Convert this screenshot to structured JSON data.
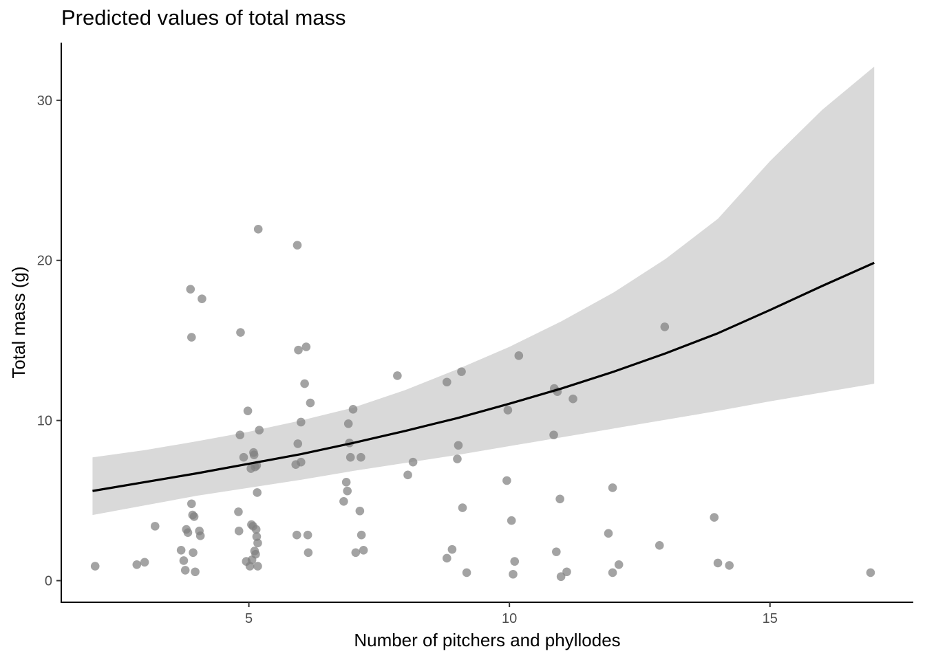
{
  "chart_data": {
    "type": "scatter",
    "title": "Predicted values of total mass",
    "xlabel": "Number of pitchers and phyllodes",
    "ylabel": "Total mass (g)",
    "xlim": [
      1.4,
      17.75
    ],
    "ylim": [
      -1.35,
      33.6
    ],
    "xticks": [
      5,
      10,
      15
    ],
    "yticks": [
      0,
      10,
      20,
      30
    ],
    "grid": false,
    "legend": "none",
    "colors": {
      "points": "#7f7f7f",
      "ribbon": "#d9d9d9",
      "line": "#000000"
    },
    "prediction": {
      "x": [
        2,
        3,
        4,
        5,
        6,
        7,
        8,
        9,
        10,
        11,
        12,
        13,
        14,
        15,
        16,
        17
      ],
      "y": [
        5.6,
        6.15,
        6.7,
        7.3,
        7.9,
        8.6,
        9.35,
        10.15,
        11.05,
        12.0,
        13.05,
        14.2,
        15.45,
        16.9,
        18.4,
        19.85
      ],
      "lower": [
        4.1,
        4.7,
        5.3,
        5.8,
        6.3,
        6.85,
        7.35,
        7.85,
        8.4,
        8.95,
        9.5,
        10.05,
        10.6,
        11.2,
        11.75,
        12.3
      ],
      "upper": [
        7.7,
        8.15,
        8.7,
        9.3,
        10.0,
        10.8,
        11.9,
        13.2,
        14.6,
        16.2,
        18.0,
        20.1,
        22.6,
        26.2,
        29.4,
        32.1
      ]
    },
    "points": [
      {
        "x": 2.05,
        "y": 0.9
      },
      {
        "x": 2.85,
        "y": 1.0
      },
      {
        "x": 3.0,
        "y": 1.15
      },
      {
        "x": 3.2,
        "y": 3.4
      },
      {
        "x": 3.7,
        "y": 1.9
      },
      {
        "x": 3.75,
        "y": 1.25
      },
      {
        "x": 3.78,
        "y": 0.65
      },
      {
        "x": 3.8,
        "y": 3.2
      },
      {
        "x": 3.83,
        "y": 3.0
      },
      {
        "x": 3.88,
        "y": 18.2
      },
      {
        "x": 3.9,
        "y": 15.2
      },
      {
        "x": 3.9,
        "y": 4.8
      },
      {
        "x": 3.92,
        "y": 4.1
      },
      {
        "x": 3.93,
        "y": 1.75
      },
      {
        "x": 3.95,
        "y": 4.0
      },
      {
        "x": 3.97,
        "y": 0.55
      },
      {
        "x": 4.05,
        "y": 3.1
      },
      {
        "x": 4.07,
        "y": 2.8
      },
      {
        "x": 4.1,
        "y": 17.6
      },
      {
        "x": 4.8,
        "y": 4.3
      },
      {
        "x": 4.81,
        "y": 3.1
      },
      {
        "x": 4.83,
        "y": 9.1
      },
      {
        "x": 4.84,
        "y": 15.5
      },
      {
        "x": 4.9,
        "y": 7.7
      },
      {
        "x": 4.95,
        "y": 1.2
      },
      {
        "x": 4.98,
        "y": 10.6
      },
      {
        "x": 5.02,
        "y": 0.9
      },
      {
        "x": 5.04,
        "y": 7.0
      },
      {
        "x": 5.05,
        "y": 3.5
      },
      {
        "x": 5.06,
        "y": 1.3
      },
      {
        "x": 5.08,
        "y": 3.4
      },
      {
        "x": 5.09,
        "y": 8.0
      },
      {
        "x": 5.1,
        "y": 7.85
      },
      {
        "x": 5.11,
        "y": 1.85
      },
      {
        "x": 5.12,
        "y": 7.1
      },
      {
        "x": 5.13,
        "y": 1.65
      },
      {
        "x": 5.14,
        "y": 3.2
      },
      {
        "x": 5.15,
        "y": 2.75
      },
      {
        "x": 5.16,
        "y": 5.5
      },
      {
        "x": 5.17,
        "y": 2.35
      },
      {
        "x": 5.17,
        "y": 0.9
      },
      {
        "x": 5.18,
        "y": 21.95
      },
      {
        "x": 5.2,
        "y": 9.4
      },
      {
        "x": 5.15,
        "y": 7.2
      },
      {
        "x": 5.9,
        "y": 7.25
      },
      {
        "x": 5.92,
        "y": 2.85
      },
      {
        "x": 5.93,
        "y": 20.95
      },
      {
        "x": 5.94,
        "y": 8.55
      },
      {
        "x": 5.95,
        "y": 14.4
      },
      {
        "x": 6.0,
        "y": 9.9
      },
      {
        "x": 6.0,
        "y": 7.4
      },
      {
        "x": 6.07,
        "y": 12.3
      },
      {
        "x": 6.1,
        "y": 14.6
      },
      {
        "x": 6.13,
        "y": 2.85
      },
      {
        "x": 6.14,
        "y": 1.75
      },
      {
        "x": 6.18,
        "y": 11.1
      },
      {
        "x": 6.82,
        "y": 4.95
      },
      {
        "x": 6.87,
        "y": 6.15
      },
      {
        "x": 6.89,
        "y": 5.6
      },
      {
        "x": 6.91,
        "y": 9.8
      },
      {
        "x": 6.93,
        "y": 8.6
      },
      {
        "x": 6.95,
        "y": 7.7
      },
      {
        "x": 7.0,
        "y": 10.7
      },
      {
        "x": 7.05,
        "y": 1.75
      },
      {
        "x": 7.13,
        "y": 4.35
      },
      {
        "x": 7.15,
        "y": 7.7
      },
      {
        "x": 7.16,
        "y": 2.85
      },
      {
        "x": 7.2,
        "y": 1.9
      },
      {
        "x": 7.85,
        "y": 12.8
      },
      {
        "x": 8.05,
        "y": 6.6
      },
      {
        "x": 8.15,
        "y": 7.4
      },
      {
        "x": 8.8,
        "y": 1.4
      },
      {
        "x": 8.8,
        "y": 12.4
      },
      {
        "x": 8.9,
        "y": 1.95
      },
      {
        "x": 9.0,
        "y": 7.6
      },
      {
        "x": 9.02,
        "y": 8.45
      },
      {
        "x": 9.08,
        "y": 13.05
      },
      {
        "x": 9.1,
        "y": 4.55
      },
      {
        "x": 9.18,
        "y": 0.5
      },
      {
        "x": 9.95,
        "y": 6.25
      },
      {
        "x": 9.97,
        "y": 10.65
      },
      {
        "x": 10.04,
        "y": 3.75
      },
      {
        "x": 10.07,
        "y": 0.4
      },
      {
        "x": 10.1,
        "y": 1.2
      },
      {
        "x": 10.18,
        "y": 14.05
      },
      {
        "x": 10.85,
        "y": 9.1
      },
      {
        "x": 10.86,
        "y": 12.0
      },
      {
        "x": 10.9,
        "y": 1.8
      },
      {
        "x": 10.92,
        "y": 11.8
      },
      {
        "x": 10.97,
        "y": 5.1
      },
      {
        "x": 10.99,
        "y": 0.25
      },
      {
        "x": 11.1,
        "y": 0.55
      },
      {
        "x": 11.22,
        "y": 11.35
      },
      {
        "x": 11.9,
        "y": 2.95
      },
      {
        "x": 11.98,
        "y": 5.8
      },
      {
        "x": 11.98,
        "y": 0.5
      },
      {
        "x": 12.1,
        "y": 1.0
      },
      {
        "x": 12.88,
        "y": 2.2
      },
      {
        "x": 12.98,
        "y": 15.85
      },
      {
        "x": 13.93,
        "y": 3.95
      },
      {
        "x": 14.0,
        "y": 1.1
      },
      {
        "x": 14.22,
        "y": 0.95
      },
      {
        "x": 16.93,
        "y": 0.5
      }
    ]
  }
}
